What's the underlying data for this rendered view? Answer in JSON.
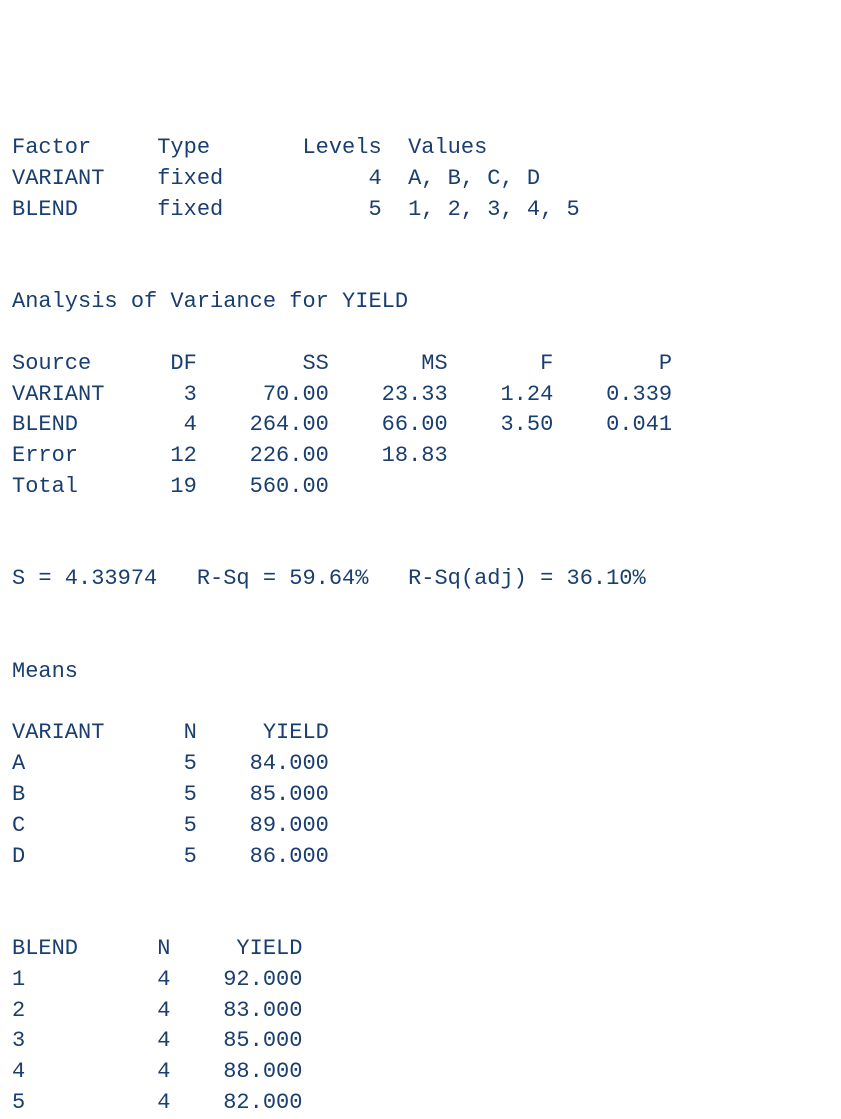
{
  "text_color": "#1a3e6f",
  "background_color": "#ffffff",
  "font_family": "Courier New, monospace",
  "font_size_pt": 16,
  "factor_table": {
    "type": "table",
    "columns": [
      "Factor",
      "Type",
      "Levels",
      "Values"
    ],
    "rows": [
      [
        "VARIANT",
        "fixed",
        4,
        "A, B, C, D"
      ],
      [
        "BLEND",
        "fixed",
        5,
        "1, 2, 3, 4, 5"
      ]
    ],
    "col_widths_ch": [
      9,
      7,
      8,
      20
    ],
    "align": [
      "left",
      "left",
      "right",
      "left"
    ]
  },
  "anova_title": "Analysis of Variance for YIELD",
  "anova_table": {
    "type": "table",
    "columns": [
      "Source",
      "DF",
      "SS",
      "MS",
      "F",
      "P"
    ],
    "rows": [
      [
        "VARIANT",
        3,
        "70.00",
        "23.33",
        "1.24",
        "0.339"
      ],
      [
        "BLEND",
        4,
        "264.00",
        "66.00",
        "3.50",
        "0.041"
      ],
      [
        "Error",
        12,
        "226.00",
        "18.83",
        "",
        ""
      ],
      [
        "Total",
        19,
        "560.00",
        "",
        "",
        ""
      ]
    ],
    "col_widths_ch": [
      8,
      4,
      8,
      7,
      6,
      7
    ],
    "align": [
      "left",
      "right",
      "right",
      "right",
      "right",
      "right"
    ]
  },
  "summary_stats": {
    "S": "4.33974",
    "R_Sq": "59.64%",
    "R_Sq_adj": "36.10%",
    "line": "S = 4.33974   R-Sq = 59.64%   R-Sq(adj) = 36.10%"
  },
  "means_title": "Means",
  "means_variant": {
    "type": "table",
    "columns": [
      "VARIANT",
      "N",
      "YIELD"
    ],
    "rows": [
      [
        "A",
        5,
        "84.000"
      ],
      [
        "B",
        5,
        "85.000"
      ],
      [
        "C",
        5,
        "89.000"
      ],
      [
        "D",
        5,
        "86.000"
      ]
    ],
    "col_widths_ch": [
      9,
      3,
      8
    ],
    "align": [
      "left",
      "right",
      "right"
    ]
  },
  "means_blend": {
    "type": "table",
    "columns": [
      "BLEND",
      "N",
      "YIELD"
    ],
    "rows": [
      [
        "1",
        4,
        "92.000"
      ],
      [
        "2",
        4,
        "83.000"
      ],
      [
        "3",
        4,
        "85.000"
      ],
      [
        "4",
        4,
        "88.000"
      ],
      [
        "5",
        4,
        "82.000"
      ]
    ],
    "col_widths_ch": [
      7,
      3,
      8
    ],
    "align": [
      "left",
      "right",
      "right"
    ]
  }
}
